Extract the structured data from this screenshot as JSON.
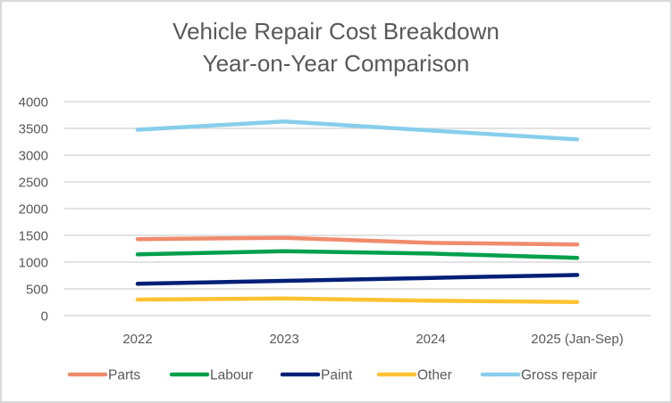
{
  "chart_data": {
    "type": "line",
    "title": [
      "Vehicle Repair Cost Breakdown",
      "Year-on-Year Comparison"
    ],
    "xlabel": "",
    "ylabel": "",
    "categories": [
      "2022",
      "2023",
      "2024",
      "2025 (Jan-Sep)"
    ],
    "ylim": [
      0,
      4000
    ],
    "yticks": [
      0,
      500,
      1000,
      1500,
      2000,
      2500,
      3000,
      3500,
      4000
    ],
    "grid": true,
    "legend_position": "bottom",
    "series": [
      {
        "name": "Parts",
        "color": "#F08B6C",
        "values": [
          1430,
          1455,
          1360,
          1330
        ]
      },
      {
        "name": "Labour",
        "color": "#00A04B",
        "values": [
          1145,
          1205,
          1160,
          1080
        ]
      },
      {
        "name": "Paint",
        "color": "#001F77",
        "values": [
          595,
          650,
          705,
          760
        ]
      },
      {
        "name": "Other",
        "color": "#FFC232",
        "values": [
          300,
          320,
          280,
          255
        ]
      },
      {
        "name": "Gross repair",
        "color": "#87CEEB",
        "values": [
          3475,
          3630,
          3460,
          3295
        ]
      }
    ]
  }
}
